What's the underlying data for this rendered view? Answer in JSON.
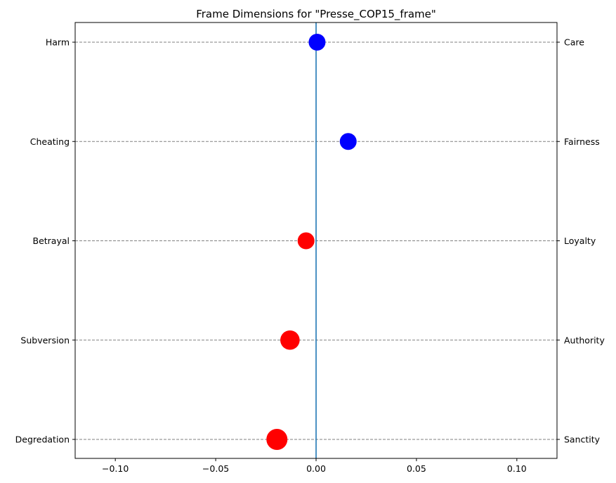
{
  "chart_data": {
    "type": "scatter",
    "title": "Frame Dimensions for \"Presse_COP15_frame\"",
    "xlim": [
      -0.12,
      0.12
    ],
    "x_ticks": [
      -0.1,
      -0.05,
      0.0,
      0.05,
      0.1
    ],
    "x_tick_labels": [
      "−0.10",
      "−0.05",
      "0.00",
      "0.05",
      "0.10"
    ],
    "grid": "horizontal dashed",
    "zero_line_color": "#1f77b4",
    "positive_color": "#0000ff",
    "negative_color": "#ff0000",
    "dimensions": [
      {
        "left_label": "Harm",
        "right_label": "Care",
        "value": 0.0005,
        "marker_scale": 1.0
      },
      {
        "left_label": "Cheating",
        "right_label": "Fairness",
        "value": 0.016,
        "marker_scale": 1.0
      },
      {
        "left_label": "Betrayal",
        "right_label": "Loyalty",
        "value": -0.005,
        "marker_scale": 1.0
      },
      {
        "left_label": "Subversion",
        "right_label": "Authority",
        "value": -0.013,
        "marker_scale": 1.15
      },
      {
        "left_label": "Degredation",
        "right_label": "Sanctity",
        "value": -0.0195,
        "marker_scale": 1.25
      }
    ]
  }
}
